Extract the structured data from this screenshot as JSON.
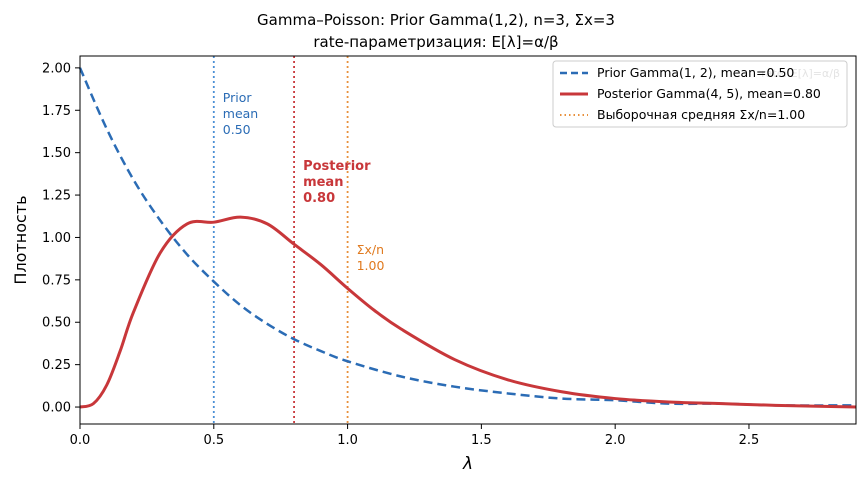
{
  "chart_data": {
    "type": "line",
    "title": "Gamma–Poisson: Prior Gamma(1,2), n=3, Σx=3",
    "subtitle": "rate-параметризация: E[λ]=α/β",
    "xlabel": "λ",
    "ylabel": "Плотность",
    "xlim": [
      0,
      2.9
    ],
    "ylim": [
      -0.1,
      2.07
    ],
    "xticks": [
      "0.0",
      "0.5",
      "1.0",
      "1.5",
      "2.0",
      "2.5"
    ],
    "yticks": [
      "0.00",
      "0.25",
      "0.50",
      "0.75",
      "1.00",
      "1.25",
      "1.50",
      "1.75",
      "2.00"
    ],
    "grid": false,
    "legend_position": "top-right",
    "series": [
      {
        "name": "Prior Gamma(1, 2), mean=0.50",
        "color": "#2b6cb5",
        "style": "dashed",
        "x": [
          0,
          0.1,
          0.2,
          0.3,
          0.4,
          0.5,
          0.6,
          0.7,
          0.8,
          0.9,
          1.0,
          1.2,
          1.4,
          1.6,
          1.8,
          2.0,
          2.2,
          2.4,
          2.6,
          2.9
        ],
        "y": [
          2.0,
          1.64,
          1.34,
          1.1,
          0.9,
          0.74,
          0.6,
          0.49,
          0.4,
          0.33,
          0.27,
          0.18,
          0.12,
          0.08,
          0.05,
          0.04,
          0.02,
          0.02,
          0.01,
          0.01
        ]
      },
      {
        "name": "Posterior Gamma(4, 5), mean=0.80",
        "color": "#c8373a",
        "style": "solid",
        "x": [
          0,
          0.05,
          0.1,
          0.15,
          0.2,
          0.3,
          0.4,
          0.5,
          0.6,
          0.7,
          0.8,
          0.9,
          1.0,
          1.1,
          1.2,
          1.4,
          1.6,
          1.8,
          2.0,
          2.2,
          2.4,
          2.6,
          2.9
        ],
        "y": [
          0.0,
          0.02,
          0.13,
          0.33,
          0.56,
          0.91,
          1.08,
          1.09,
          1.12,
          1.08,
          0.96,
          0.84,
          0.7,
          0.57,
          0.46,
          0.28,
          0.16,
          0.09,
          0.05,
          0.03,
          0.02,
          0.01,
          0.0
        ]
      },
      {
        "name": "Выборочная средняя Σx/n=1.00",
        "color": "#e8913d",
        "style": "dotted",
        "vline": 1.0
      }
    ],
    "vlines": [
      {
        "x": 0.5,
        "color": "#4a8fd6",
        "label": [
          "Prior",
          "mean",
          "0.50"
        ],
        "label_color": "#2b6cb5",
        "bold": false
      },
      {
        "x": 0.8,
        "color": "#c8373a",
        "label": [
          "Posterior",
          "mean",
          "0.80"
        ],
        "label_color": "#c8373a",
        "bold": true
      },
      {
        "x": 1.0,
        "color": "#e8913d",
        "label": [
          "Σx/n",
          "1.00"
        ],
        "label_color": "#e07a1f",
        "bold": false
      }
    ],
    "legend_watermark": "rate: E[λ]=α/β"
  }
}
